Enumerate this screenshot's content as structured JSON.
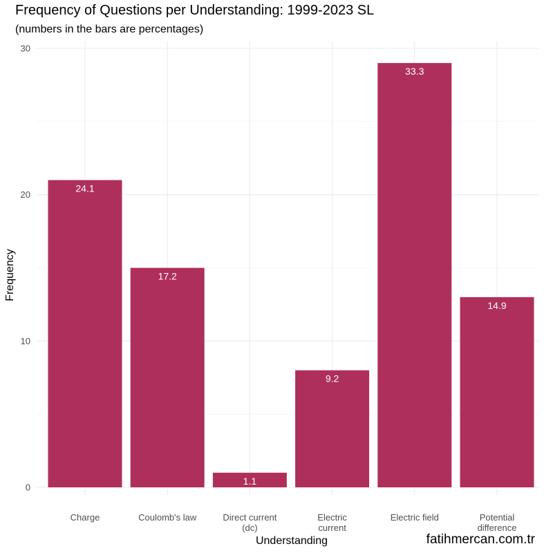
{
  "chart_data": {
    "type": "bar",
    "title": "Frequency of Questions per Understanding: 1999-2023 SL",
    "subtitle": "(numbers in the bars are percentages)",
    "xlabel": "Understanding",
    "ylabel": "Frequency",
    "categories": [
      [
        "Charge"
      ],
      [
        "Coulomb's law"
      ],
      [
        "Direct current",
        "(dc)"
      ],
      [
        "Electric",
        "current"
      ],
      [
        "Electric field"
      ],
      [
        "Potential",
        "difference"
      ]
    ],
    "values": [
      21,
      15,
      1,
      8,
      29,
      13
    ],
    "bar_labels": [
      "24.1",
      "17.2",
      "1.1",
      "9.2",
      "33.3",
      "14.9"
    ],
    "yticks": [
      0,
      10,
      20,
      30
    ],
    "ylim": [
      0,
      30
    ],
    "grid": true,
    "bar_color": "#AE2F5C"
  },
  "watermark": "fatihmercan.com.tr"
}
